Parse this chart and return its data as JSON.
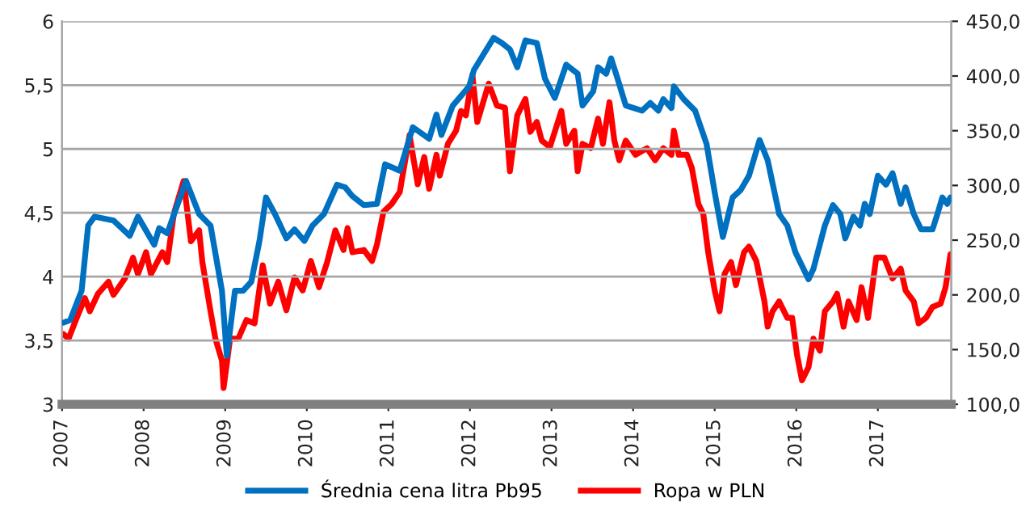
{
  "chart_data": {
    "type": "line",
    "xlim": [
      2007,
      2017.9
    ],
    "xticks": [
      2007,
      2008,
      2009,
      2010,
      2011,
      2012,
      2013,
      2014,
      2015,
      2016,
      2017
    ],
    "ylim": [
      3,
      6
    ],
    "yticks": [
      3,
      {
        "value": 3.5,
        "label": "3,5"
      },
      4,
      {
        "value": 4.5,
        "label": "4,5"
      },
      5,
      {
        "value": 5.5,
        "label": "5,5"
      },
      6
    ],
    "y2lim": [
      100,
      450
    ],
    "y2ticks": [
      {
        "value": 100,
        "label": "100,0"
      },
      {
        "value": 150,
        "label": "150,0"
      },
      {
        "value": 200,
        "label": "200,0"
      },
      {
        "value": 250,
        "label": "250,0"
      },
      {
        "value": 300,
        "label": "300,0"
      },
      {
        "value": 350,
        "label": "350,0"
      },
      {
        "value": 400,
        "label": "400,0"
      },
      {
        "value": 450,
        "label": "450,0"
      }
    ],
    "grid": "y",
    "legend": "bottom",
    "line_style": "solid",
    "marker": "none",
    "series": [
      {
        "name": "Średnia cena litra Pb95",
        "color": "#0070c0",
        "x": [
          2007.02,
          2007.1,
          2007.24,
          2007.32,
          2007.4,
          2007.63,
          2007.83,
          2007.93,
          2008.13,
          2008.19,
          2008.29,
          2008.52,
          2008.68,
          2008.82,
          2008.96,
          2009.02,
          2009.12,
          2009.22,
          2009.32,
          2009.42,
          2009.5,
          2009.61,
          2009.75,
          2009.85,
          2009.97,
          2010.07,
          2010.21,
          2010.37,
          2010.47,
          2010.56,
          2010.7,
          2010.86,
          2010.96,
          2011.14,
          2011.3,
          2011.5,
          2011.59,
          2011.65,
          2011.79,
          2011.99,
          2012.05,
          2012.29,
          2012.39,
          2012.49,
          2012.58,
          2012.68,
          2012.82,
          2012.92,
          2013.04,
          2013.18,
          2013.32,
          2013.38,
          2013.51,
          2013.57,
          2013.67,
          2013.73,
          2013.81,
          2013.91,
          2014.11,
          2014.21,
          2014.31,
          2014.37,
          2014.47,
          2014.5,
          2014.62,
          2014.76,
          2014.9,
          2015.0,
          2015.1,
          2015.22,
          2015.32,
          2015.42,
          2015.55,
          2015.65,
          2015.79,
          2015.89,
          2015.99,
          2016.15,
          2016.21,
          2016.35,
          2016.45,
          2016.54,
          2016.6,
          2016.7,
          2016.78,
          2016.84,
          2016.9,
          2017.0,
          2017.1,
          2017.18,
          2017.28,
          2017.34,
          2017.44,
          2017.53,
          2017.67,
          2017.73,
          2017.79,
          2017.85,
          2017.89
        ],
        "values": [
          3.64,
          3.66,
          3.89,
          4.4,
          4.47,
          4.44,
          4.32,
          4.47,
          4.25,
          4.38,
          4.34,
          4.75,
          4.49,
          4.4,
          3.89,
          3.38,
          3.89,
          3.89,
          3.96,
          4.28,
          4.62,
          4.49,
          4.3,
          4.37,
          4.28,
          4.4,
          4.49,
          4.72,
          4.7,
          4.63,
          4.56,
          4.57,
          4.88,
          4.83,
          5.17,
          5.08,
          5.27,
          5.11,
          5.34,
          5.49,
          5.62,
          5.87,
          5.83,
          5.78,
          5.64,
          5.85,
          5.83,
          5.55,
          5.4,
          5.66,
          5.59,
          5.34,
          5.45,
          5.64,
          5.59,
          5.71,
          5.55,
          5.34,
          5.3,
          5.36,
          5.3,
          5.39,
          5.32,
          5.49,
          5.39,
          5.3,
          5.04,
          4.66,
          4.31,
          4.62,
          4.68,
          4.79,
          5.07,
          4.91,
          4.49,
          4.4,
          4.19,
          3.98,
          4.06,
          4.4,
          4.56,
          4.49,
          4.3,
          4.47,
          4.4,
          4.57,
          4.49,
          4.79,
          4.72,
          4.81,
          4.57,
          4.7,
          4.49,
          4.37,
          4.37,
          4.49,
          4.62,
          4.57,
          4.62
        ]
      },
      {
        "name": "Ropa w PLN",
        "color": "#ff0000",
        "axis": "y2",
        "x": [
          2007.02,
          2007.08,
          2007.18,
          2007.28,
          2007.34,
          2007.44,
          2007.57,
          2007.63,
          2007.77,
          2007.87,
          2007.93,
          2008.03,
          2008.09,
          2008.23,
          2008.29,
          2008.37,
          2008.49,
          2008.58,
          2008.68,
          2008.72,
          2008.82,
          2008.88,
          2008.96,
          2008.98,
          2009.06,
          2009.16,
          2009.26,
          2009.36,
          2009.46,
          2009.55,
          2009.65,
          2009.75,
          2009.85,
          2009.95,
          2010.05,
          2010.15,
          2010.25,
          2010.35,
          2010.45,
          2010.5,
          2010.56,
          2010.7,
          2010.8,
          2010.86,
          2010.94,
          2011.04,
          2011.14,
          2011.26,
          2011.36,
          2011.44,
          2011.5,
          2011.59,
          2011.63,
          2011.73,
          2011.83,
          2011.89,
          2011.95,
          2012.03,
          2012.09,
          2012.23,
          2012.33,
          2012.43,
          2012.49,
          2012.58,
          2012.68,
          2012.74,
          2012.82,
          2012.88,
          2012.98,
          2013.12,
          2013.18,
          2013.28,
          2013.32,
          2013.38,
          2013.48,
          2013.57,
          2013.63,
          2013.71,
          2013.77,
          2013.83,
          2013.91,
          2014.03,
          2014.17,
          2014.27,
          2014.37,
          2014.47,
          2014.5,
          2014.56,
          2014.66,
          2014.72,
          2014.8,
          2014.86,
          2014.92,
          2015.0,
          2015.06,
          2015.12,
          2015.2,
          2015.26,
          2015.36,
          2015.42,
          2015.51,
          2015.61,
          2015.65,
          2015.71,
          2015.79,
          2015.89,
          2015.95,
          2016.01,
          2016.07,
          2016.15,
          2016.21,
          2016.29,
          2016.35,
          2016.45,
          2016.5,
          2016.58,
          2016.64,
          2016.74,
          2016.8,
          2016.88,
          2016.98,
          2017.08,
          2017.18,
          2017.28,
          2017.34,
          2017.44,
          2017.5,
          2017.59,
          2017.67,
          2017.77,
          2017.83,
          2017.89
        ],
        "values": [
          164,
          160,
          179,
          197,
          185,
          201,
          212,
          200,
          215,
          234,
          219,
          239,
          219,
          239,
          230,
          274,
          304,
          249,
          259,
          230,
          185,
          160,
          140,
          115,
          160,
          160,
          177,
          174,
          227,
          192,
          212,
          186,
          216,
          204,
          231,
          207,
          230,
          259,
          241,
          261,
          239,
          241,
          231,
          246,
          276,
          283,
          294,
          346,
          301,
          326,
          297,
          328,
          309,
          338,
          350,
          368,
          364,
          401,
          358,
          393,
          373,
          371,
          313,
          364,
          379,
          349,
          358,
          341,
          335,
          368,
          338,
          350,
          313,
          338,
          334,
          361,
          338,
          376,
          341,
          323,
          341,
          328,
          334,
          323,
          334,
          328,
          350,
          328,
          328,
          316,
          283,
          274,
          239,
          204,
          185,
          219,
          230,
          209,
          239,
          244,
          231,
          194,
          171,
          185,
          194,
          179,
          179,
          145,
          122,
          134,
          160,
          149,
          185,
          194,
          201,
          171,
          194,
          177,
          207,
          179,
          234,
          234,
          215,
          224,
          204,
          194,
          174,
          179,
          189,
          192,
          207,
          237
        ]
      }
    ]
  }
}
